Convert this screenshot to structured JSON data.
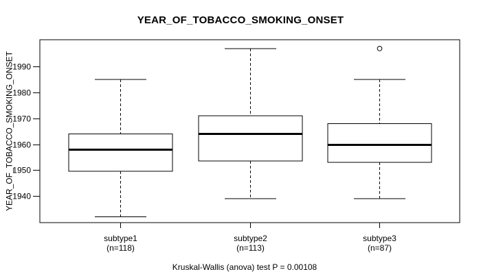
{
  "figure": {
    "title": "YEAR_OF_TOBACCO_SMOKING_ONSET",
    "y_axis_label": "YEAR_OF_TOBACCO_SMOKING_ONSET",
    "caption": "Kruskal-Wallis (anova) test P = 0.00108"
  },
  "chart_data": {
    "type": "boxplot",
    "title": "YEAR_OF_TOBACCO_SMOKING_ONSET",
    "xlabel": "",
    "ylabel": "YEAR_OF_TOBACCO_SMOKING_ONSET",
    "annotation": "Kruskal-Wallis (anova) test P = 0.00108",
    "stat_test": {
      "name": "Kruskal-Wallis (anova) test",
      "p_value": "0.00108"
    },
    "categories": [
      "subtype1",
      "subtype2",
      "subtype3"
    ],
    "category_sublabels": [
      "(n=118)",
      "(n=113)",
      "(n=87)"
    ],
    "series": [
      {
        "name": "subtype1",
        "n": 118,
        "whisker_low": 1932,
        "q1": 1949.5,
        "median": 1958,
        "q3": 1964,
        "whisker_high": 1985,
        "outliers": []
      },
      {
        "name": "subtype2",
        "n": 113,
        "whisker_low": 1939,
        "q1": 1953.5,
        "median": 1964,
        "q3": 1971,
        "whisker_high": 1997,
        "outliers": []
      },
      {
        "name": "subtype3",
        "n": 87,
        "whisker_low": 1939,
        "q1": 1953,
        "median": 1960,
        "q3": 1968,
        "whisker_high": 1985,
        "outliers": [
          1997
        ]
      }
    ],
    "yticks": [
      1940,
      1950,
      1960,
      1970,
      1980,
      1990
    ],
    "ylim": [
      1929.7,
      2000.4
    ],
    "xlim": [
      0.38,
      3.62
    ],
    "grid": false,
    "legend": null
  },
  "colors": {
    "stroke": "#000000",
    "background": "#ffffff",
    "box_fill": "#ffffff"
  }
}
